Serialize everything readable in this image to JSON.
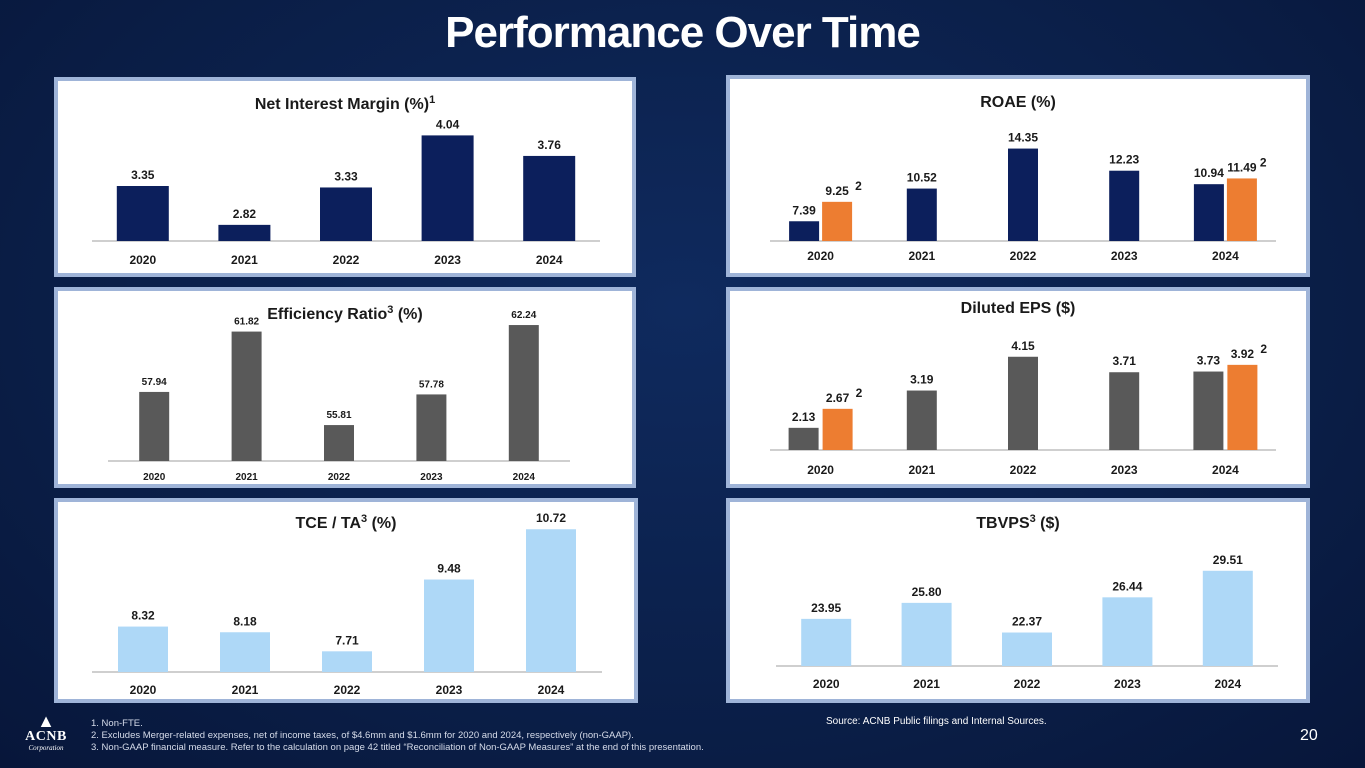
{
  "page": {
    "title": "Performance Over Time",
    "page_number": "20",
    "source": "Source: ACNB Public filings and Internal Sources.",
    "footnotes": [
      "1. Non-FTE.",
      "2. Excludes Merger-related expenses, net of income taxes, of $4.6mm and $1.6mm for 2020 and 2024, respectively (non-GAAP).",
      "3. Non-GAAP financial measure. Refer to the calculation on page 42 titled “Reconciliation of Non-GAAP Measures” at the end of this presentation."
    ],
    "logo": {
      "name": "ACNB",
      "sub": "Corporation"
    }
  },
  "colors": {
    "navy": "#0c1f5c",
    "gray": "#595959",
    "orange": "#ed7d31",
    "lightblue": "#aed8f7"
  },
  "chart_data": [
    {
      "id": "nim",
      "type": "bar",
      "title": "Net Interest Margin (%)",
      "title_sup": "1",
      "categories": [
        "2020",
        "2021",
        "2022",
        "2023",
        "2024"
      ],
      "series": [
        {
          "name": "Net Interest Margin",
          "values": [
            3.35,
            2.82,
            3.33,
            4.04,
            3.76
          ],
          "labels": [
            "3.35",
            "2.82",
            "3.33",
            "4.04",
            "3.76"
          ],
          "color": "navy"
        }
      ],
      "ylim": [
        2.6,
        4.1
      ]
    },
    {
      "id": "roae",
      "type": "bar",
      "title": "ROAE (%)",
      "title_sup": "",
      "categories": [
        "2020",
        "2021",
        "2022",
        "2023",
        "2024"
      ],
      "series": [
        {
          "name": "ROAE",
          "values": [
            7.39,
            10.52,
            14.35,
            12.23,
            10.94
          ],
          "labels": [
            "7.39",
            "10.52",
            "14.35",
            "12.23",
            "10.94"
          ],
          "color": "navy"
        },
        {
          "name": "ROAE excl. merger expenses",
          "values": [
            9.25,
            null,
            null,
            null,
            11.49
          ],
          "labels": [
            "9.25",
            null,
            null,
            null,
            "11.49"
          ],
          "note": "2",
          "color": "orange"
        }
      ],
      "ylim": [
        5.5,
        14.5
      ]
    },
    {
      "id": "eff",
      "type": "bar",
      "title": "Efficiency Ratio",
      "title_sup": "3",
      "title_suffix": " (%)",
      "categories": [
        "2020",
        "2021",
        "2022",
        "2023",
        "2024"
      ],
      "series": [
        {
          "name": "Efficiency Ratio",
          "values": [
            57.94,
            61.82,
            55.81,
            57.78,
            62.24
          ],
          "labels": [
            "57.94",
            "61.82",
            "55.81",
            "57.78",
            "62.24"
          ],
          "color": "gray"
        }
      ],
      "ylim": [
        53.5,
        62.5
      ]
    },
    {
      "id": "eps",
      "type": "bar",
      "title": "Diluted EPS ($)",
      "title_sup": "",
      "categories": [
        "2020",
        "2021",
        "2022",
        "2023",
        "2024"
      ],
      "series": [
        {
          "name": "Diluted EPS",
          "values": [
            2.13,
            3.19,
            4.15,
            3.71,
            3.73
          ],
          "labels": [
            "2.13",
            "3.19",
            "4.15",
            "3.71",
            "3.73"
          ],
          "color": "gray"
        },
        {
          "name": "Diluted EPS excl. merger expenses",
          "values": [
            2.67,
            null,
            null,
            null,
            3.92
          ],
          "labels": [
            "2.67",
            null,
            null,
            null,
            "3.92"
          ],
          "note": "2",
          "color": "orange"
        }
      ],
      "ylim": [
        1.5,
        4.2
      ]
    },
    {
      "id": "tce",
      "type": "bar",
      "title": "TCE / TA",
      "title_sup": "3",
      "title_suffix": " (%)",
      "categories": [
        "2020",
        "2021",
        "2022",
        "2023",
        "2024"
      ],
      "series": [
        {
          "name": "TCE / TA",
          "values": [
            8.32,
            8.18,
            7.71,
            9.48,
            10.72
          ],
          "labels": [
            "8.32",
            "8.18",
            "7.71",
            "9.48",
            "10.72"
          ],
          "color": "lightblue"
        }
      ],
      "ylim": [
        7.2,
        10.8
      ]
    },
    {
      "id": "tbvps",
      "type": "bar",
      "title": "TBVPS",
      "title_sup": "3",
      "title_suffix": " ($)",
      "categories": [
        "2020",
        "2021",
        "2022",
        "2023",
        "2024"
      ],
      "series": [
        {
          "name": "TBVPS",
          "values": [
            23.95,
            25.8,
            22.37,
            26.44,
            29.51
          ],
          "labels": [
            "23.95",
            "25.80",
            "22.37",
            "26.44",
            "29.51"
          ],
          "color": "lightblue"
        }
      ],
      "ylim": [
        18.5,
        29.6
      ]
    }
  ]
}
